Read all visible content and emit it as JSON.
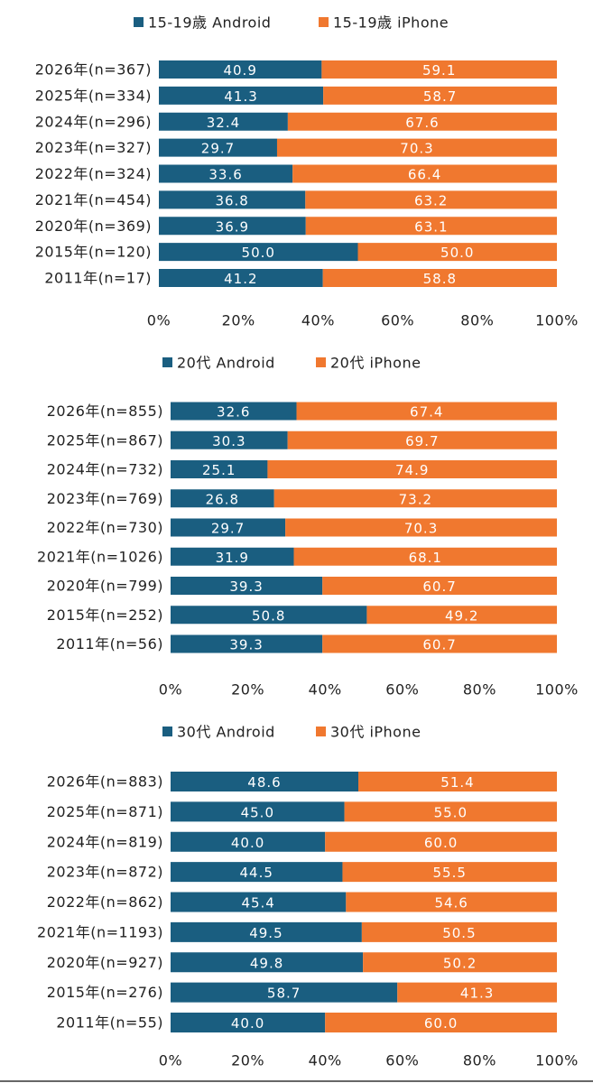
{
  "colors": {
    "android": "#1a5e80",
    "iphone": "#f0782f"
  },
  "chart_data": [
    {
      "type": "bar",
      "orientation": "horizontal",
      "stacked": "100%",
      "legend": {
        "position": "top",
        "entries": [
          "15-19歳 Android",
          "15-19歳 iPhone"
        ]
      },
      "categories": [
        "2026年(n=367)",
        "2025年(n=334)",
        "2024年(n=296)",
        "2023年(n=327)",
        "2022年(n=324)",
        "2021年(n=454)",
        "2020年(n=369)",
        "2015年(n=120)",
        "2011年(n=17)"
      ],
      "series": [
        {
          "name": "15-19歳 Android",
          "values": [
            40.9,
            41.3,
            32.4,
            29.7,
            33.6,
            36.8,
            36.9,
            50.0,
            41.2
          ],
          "labels": [
            "40.9",
            "41.3",
            "32.4",
            "29.7",
            "33.6",
            "36.8",
            "36.9",
            "50.0",
            "41.2"
          ]
        },
        {
          "name": "15-19歳 iPhone",
          "values": [
            59.1,
            58.7,
            67.6,
            70.3,
            66.4,
            63.2,
            63.1,
            50.0,
            58.8
          ],
          "labels": [
            "59.1",
            "58.7",
            "67.6",
            "70.3",
            "66.4",
            "63.2",
            "63.1",
            "50.0",
            "58.8"
          ]
        }
      ],
      "xlim": [
        0,
        100
      ],
      "ticks": [
        "0%",
        "20%",
        "40%",
        "60%",
        "80%",
        "100%"
      ],
      "grid": false
    },
    {
      "type": "bar",
      "orientation": "horizontal",
      "stacked": "100%",
      "legend": {
        "position": "top",
        "entries": [
          "20代 Android",
          "20代 iPhone"
        ]
      },
      "categories": [
        "2026年(n=855)",
        "2025年(n=867)",
        "2024年(n=732)",
        "2023年(n=769)",
        "2022年(n=730)",
        "2021年(n=1026)",
        "2020年(n=799)",
        "2015年(n=252)",
        "2011年(n=56)"
      ],
      "series": [
        {
          "name": "20代 Android",
          "values": [
            32.6,
            30.3,
            25.1,
            26.8,
            29.7,
            31.9,
            39.3,
            50.8,
            39.3
          ],
          "labels": [
            "32.6",
            "30.3",
            "25.1",
            "26.8",
            "29.7",
            "31.9",
            "39.3",
            "50.8",
            "39.3"
          ]
        },
        {
          "name": "20代 iPhone",
          "values": [
            67.4,
            69.7,
            74.9,
            73.2,
            70.3,
            68.1,
            60.7,
            49.2,
            60.7
          ],
          "labels": [
            "67.4",
            "69.7",
            "74.9",
            "73.2",
            "70.3",
            "68.1",
            "60.7",
            "49.2",
            "60.7"
          ]
        }
      ],
      "xlim": [
        0,
        100
      ],
      "ticks": [
        "0%",
        "20%",
        "40%",
        "60%",
        "80%",
        "100%"
      ],
      "grid": false
    },
    {
      "type": "bar",
      "orientation": "horizontal",
      "stacked": "100%",
      "legend": {
        "position": "top",
        "entries": [
          "30代 Android",
          "30代 iPhone"
        ]
      },
      "categories": [
        "2026年(n=883)",
        "2025年(n=871)",
        "2024年(n=819)",
        "2023年(n=872)",
        "2022年(n=862)",
        "2021年(n=1193)",
        "2020年(n=927)",
        "2015年(n=276)",
        "2011年(n=55)"
      ],
      "series": [
        {
          "name": "30代 Android",
          "values": [
            48.6,
            45.0,
            40.0,
            44.5,
            45.4,
            49.5,
            49.8,
            58.7,
            40.0
          ],
          "labels": [
            "48.6",
            "45.0",
            "40.0",
            "44.5",
            "45.4",
            "49.5",
            "49.8",
            "58.7",
            "40.0"
          ]
        },
        {
          "name": "30代 iPhone",
          "values": [
            51.4,
            55.0,
            60.0,
            55.5,
            54.6,
            50.5,
            50.2,
            41.3,
            60.0
          ],
          "labels": [
            "51.4",
            "55.0",
            "60.0",
            "55.5",
            "54.6",
            "50.5",
            "50.2",
            "41.3",
            "60.0"
          ]
        }
      ],
      "xlim": [
        0,
        100
      ],
      "ticks": [
        "0%",
        "20%",
        "40%",
        "60%",
        "80%",
        "100%"
      ],
      "grid": false
    }
  ]
}
